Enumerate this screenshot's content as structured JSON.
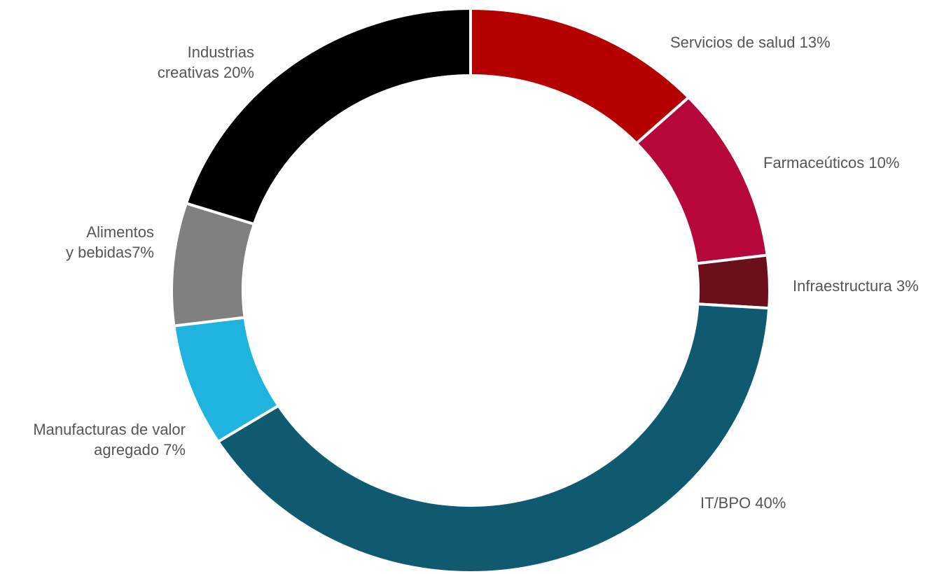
{
  "chart_data": {
    "type": "donut",
    "categories": [
      [
        "Servicios de salud 13%"
      ],
      [
        "Farmaceúticos 10%"
      ],
      [
        "Infraestructura 3%"
      ],
      [
        "IT/BPO 40%"
      ],
      [
        "Manufacturas de valor",
        "agregado 7%"
      ],
      [
        "Alimentos",
        "y bebidas7%"
      ],
      [
        "Industrias",
        "creativas 20%"
      ]
    ],
    "values": [
      13,
      10,
      3,
      40,
      7,
      7,
      20
    ],
    "colors": [
      "#b50000",
      "#b5073a",
      "#6b0f1a",
      "#0f5a70",
      "#1fb4e0",
      "#808080",
      "#000000"
    ]
  }
}
